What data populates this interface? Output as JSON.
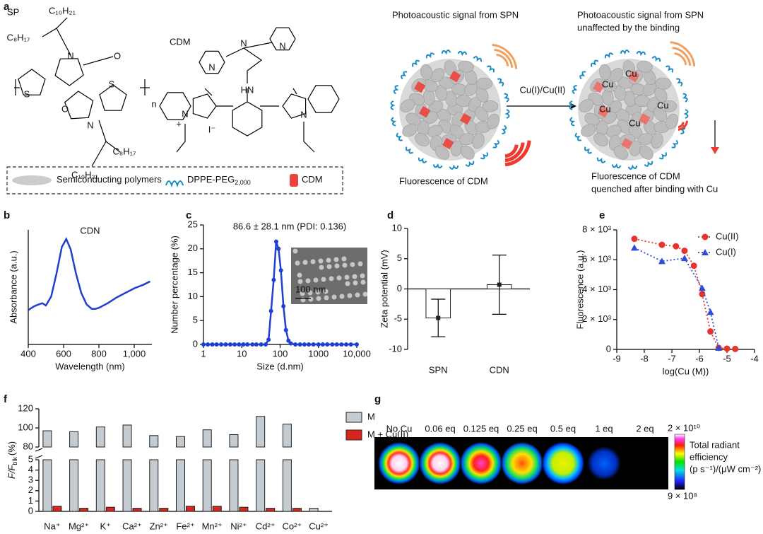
{
  "panel_labels": [
    "a",
    "b",
    "c",
    "d",
    "e",
    "f",
    "g"
  ],
  "scheme": {
    "sp_label": "SP",
    "cdm_label": "CDM",
    "sp_atoms": [
      "C₁₀H₂₁",
      "C₈H₁₇",
      "N",
      "O",
      "S",
      "S",
      "O",
      "N",
      "n",
      "C₈H₁₇",
      "C₁₀H₂₁"
    ],
    "cdm_atoms": [
      "N",
      "N",
      "N",
      "HN",
      "N",
      "+",
      "I⁻",
      "N"
    ],
    "legend": [
      {
        "text": "Semiconducting polymers"
      },
      {
        "text": "DPPE-PEG",
        "sub": "2,000"
      },
      {
        "text": "CDM"
      }
    ],
    "pa_left": "Photoacoustic signal from SPN",
    "pa_right": [
      "Photoacoustic signal from SPN",
      "unaffected by the binding"
    ],
    "arrow": "Cu(I)/Cu(II)",
    "fl_left": "Fluorescence of CDM",
    "fl_right": [
      "Fluorescence of CDM",
      "quenched after binding with Cu"
    ],
    "cu": "Cu"
  },
  "chart_data": [
    {
      "type": "line",
      "title": "CDN",
      "xlabel": "Wavelength (nm)",
      "ylabel": "Absorbance (a.u.)",
      "color": "#1f3fd1",
      "x": [
        400,
        430,
        460,
        480,
        500,
        530,
        560,
        590,
        615,
        640,
        670,
        700,
        730,
        760,
        780,
        800,
        850,
        900,
        950,
        1000,
        1050,
        1090
      ],
      "values": [
        0.3,
        0.33,
        0.35,
        0.36,
        0.34,
        0.42,
        0.62,
        0.85,
        0.92,
        0.83,
        0.62,
        0.45,
        0.35,
        0.31,
        0.31,
        0.32,
        0.36,
        0.41,
        0.45,
        0.49,
        0.52,
        0.55
      ],
      "xlim": [
        400,
        1100
      ],
      "xticks": [
        400,
        600,
        800,
        {
          "value": 1000,
          "label": "1,000"
        }
      ],
      "ylim": [
        0,
        1
      ]
    },
    {
      "type": "line",
      "annotation": "86.6 ± 28.1 nm (PDI: 0.136)",
      "xlabel": "Size (d.nm)",
      "ylabel": "Number percentage (%)",
      "color": "#1f3fd1",
      "marker": "circle",
      "log": true,
      "inset_scale": "100 nm",
      "x": [
        1,
        1.3,
        1.7,
        2.2,
        2.9,
        3.8,
        5,
        6.5,
        8.5,
        11,
        14,
        19,
        24,
        32,
        42,
        50,
        58,
        68,
        79,
        91,
        105,
        122,
        142,
        165,
        190,
        250,
        330,
        430,
        560,
        740,
        1000,
        1300,
        1700,
        2300,
        3000,
        4000,
        5300,
        7000,
        10000
      ],
      "values": [
        0,
        0,
        0,
        0,
        0,
        0,
        0,
        0,
        0,
        0,
        0,
        0,
        0,
        0,
        0,
        1,
        7,
        13.5,
        21.5,
        20,
        15.5,
        8,
        3,
        0.8,
        0.2,
        0,
        0,
        0,
        0,
        0,
        0,
        0,
        0,
        0,
        0,
        0,
        0,
        0,
        0
      ],
      "xlim": [
        1,
        10000
      ],
      "xticks": [
        1,
        10,
        100,
        1000,
        {
          "value": 10000,
          "label": "10,000"
        }
      ],
      "ylim": [
        0,
        25
      ],
      "yticks": [
        0,
        5,
        10,
        15,
        20,
        25
      ]
    },
    {
      "type": "bar",
      "ylabel": "Zeta potential (mV)",
      "categories": [
        "SPN",
        "CDN"
      ],
      "values": [
        -4.8,
        0.7
      ],
      "errors": [
        3.1,
        4.9
      ],
      "ylim": [
        -10,
        10
      ],
      "yticks": [
        -10,
        -5,
        0,
        5,
        10
      ]
    },
    {
      "type": "scatter",
      "xlabel": "log(Cu (M))",
      "ylabel": "Fluorescence (a.u.)",
      "legend": "upper right",
      "series": [
        {
          "name": "Cu(II)",
          "color": "#e8322b",
          "marker": "circle",
          "x": [
            -8.36,
            -7.36,
            -6.85,
            -6.54,
            -6.2,
            -5.9,
            -5.6,
            -5.3,
            -5.0,
            -4.7
          ],
          "values": [
            7400,
            7000,
            6900,
            6600,
            5600,
            3700,
            1200,
            100,
            50,
            30
          ]
        },
        {
          "name": "Cu(I)",
          "color": "#2c4fd6",
          "marker": "triangle",
          "x": [
            -8.36,
            -7.36,
            -6.54,
            -5.9,
            -5.6,
            -5.3
          ],
          "values": [
            6800,
            5900,
            6100,
            4100,
            2500,
            100
          ]
        }
      ],
      "xlim": [
        -9,
        -4
      ],
      "xticks": [
        -9,
        -8,
        -7,
        -6,
        -5,
        -4
      ],
      "ylim": [
        0,
        8000
      ],
      "yticks": [
        0,
        {
          "value": 2000,
          "label": "2 × 10³"
        },
        {
          "value": 4000,
          "label": "4 × 10³"
        },
        {
          "value": 6000,
          "label": "6 × 10³"
        },
        {
          "value": 8000,
          "label": "8 × 10³"
        }
      ]
    },
    {
      "type": "bar",
      "ylabel": {
        "main": "F/F",
        "sub": "blk",
        "unit": "(%)"
      },
      "categories": [
        "Na⁺",
        "Mg²⁺",
        "K⁺",
        "Ca²⁺",
        "Zn²⁺",
        "Fe²⁺",
        "Mn²⁺",
        "Ni²⁺",
        "Cd²⁺",
        "Co²⁺",
        "Cu²⁺"
      ],
      "series": [
        {
          "name": "M",
          "color": "#c4ccd1",
          "values": [
            97,
            96,
            101,
            103,
            92,
            91,
            98,
            93,
            112,
            104,
            0.3
          ]
        },
        {
          "name": "M + Cu(II)",
          "color": "#d9261c",
          "values": [
            0.5,
            0.3,
            0.4,
            0.3,
            0.3,
            0.5,
            0.5,
            0.4,
            0.3,
            0.3,
            null
          ]
        }
      ],
      "ylim": [
        0,
        5
      ],
      "yticks": [
        0,
        1,
        2,
        3,
        4,
        5
      ],
      "ylim_upper": [
        80,
        120
      ],
      "yticks_upper": [
        80,
        100,
        120
      ]
    }
  ],
  "imaging": {
    "labels": [
      "No Cu",
      "0.06 eq",
      "0.125 eq",
      "0.25 eq",
      "0.5 eq",
      "1 eq",
      "2 eq"
    ],
    "colorbar_max": "2 × 10¹⁰",
    "colorbar_min": "9 × 10⁸",
    "colorbar_title": [
      "Total radiant",
      "efficiency",
      "(p s⁻¹)/(μW cm⁻²)"
    ]
  }
}
